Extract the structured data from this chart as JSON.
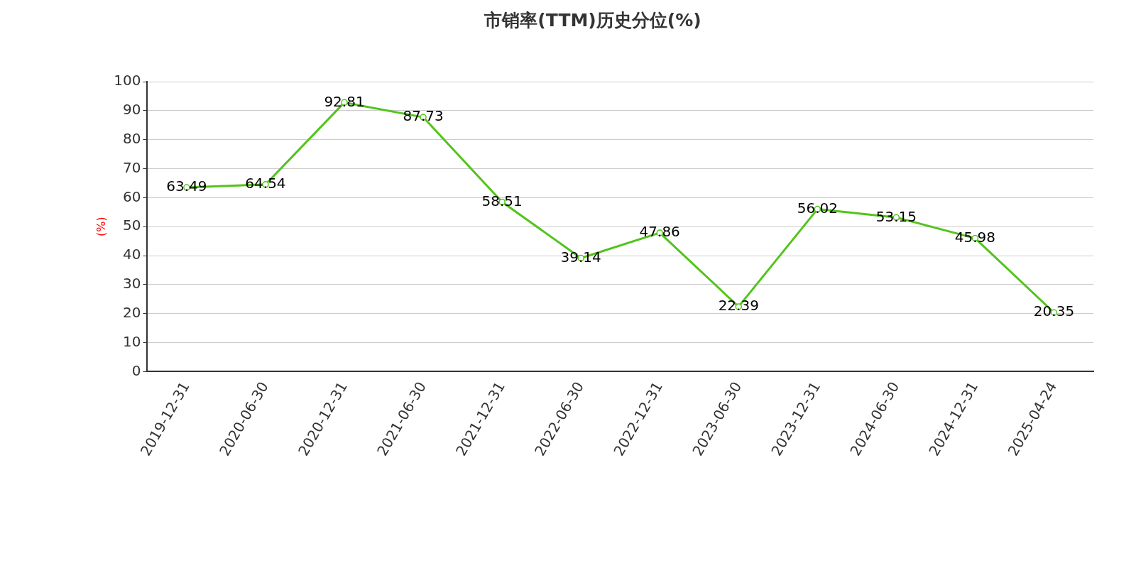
{
  "chart_data": {
    "type": "line",
    "title": "市销率(TTM)历史分位(%)",
    "ylabel": "(%)",
    "categories": [
      "2019-12-31",
      "2020-06-30",
      "2020-12-31",
      "2021-06-30",
      "2021-12-31",
      "2022-06-30",
      "2022-12-31",
      "2023-06-30",
      "2023-12-31",
      "2024-06-30",
      "2024-12-31",
      "2025-04-24"
    ],
    "series": [
      {
        "color": "#52c41a",
        "values": [
          63.49,
          64.54,
          92.81,
          87.73,
          58.51,
          39.14,
          47.86,
          22.39,
          56.02,
          53.15,
          45.98,
          20.35
        ]
      }
    ],
    "ylim": [
      0,
      100
    ],
    "yticks": [
      0,
      10,
      20,
      30,
      40,
      50,
      60,
      70,
      80,
      90,
      100
    ],
    "grid": "y",
    "legend": false,
    "marker": "circle",
    "line_style": "solid",
    "data_labels": true
  }
}
